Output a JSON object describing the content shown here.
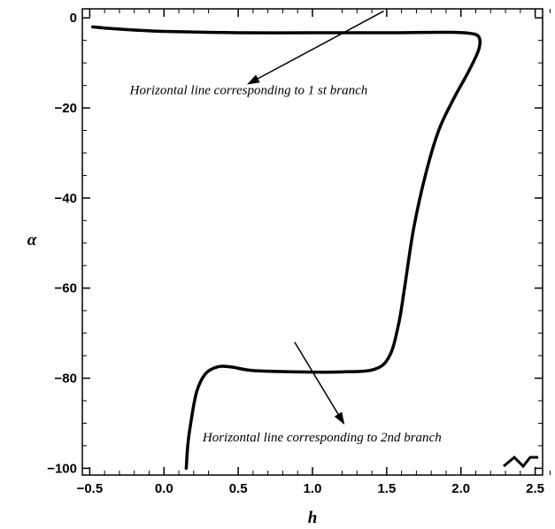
{
  "chart_data": {
    "type": "line",
    "xlabel": "h",
    "ylabel": "α",
    "xlim": [
      -0.55,
      2.55
    ],
    "ylim": [
      -101.5,
      2
    ],
    "x_ticks": [
      -0.5,
      0.0,
      0.5,
      1.0,
      1.5,
      2.0,
      2.5
    ],
    "x_tick_labels": [
      "−0.5",
      "0.0",
      "0.5",
      "1.0",
      "1.5",
      "2.0",
      "2.5"
    ],
    "y_ticks": [
      0,
      -20,
      -40,
      -60,
      -80,
      -100
    ],
    "y_tick_labels": [
      "0",
      "−20",
      "−40",
      "−60",
      "−80",
      "−100"
    ],
    "grid": false,
    "series": [
      {
        "points": [
          [
            -0.48,
            -2.0
          ],
          [
            -0.3,
            -2.5
          ],
          [
            0.0,
            -3.0
          ],
          [
            0.5,
            -3.3
          ],
          [
            1.0,
            -3.3
          ],
          [
            1.5,
            -3.3
          ],
          [
            1.9,
            -3.2
          ],
          [
            2.05,
            -3.4
          ],
          [
            2.12,
            -4.2
          ],
          [
            2.12,
            -7.0
          ],
          [
            2.05,
            -12.0
          ],
          [
            1.95,
            -18.0
          ],
          [
            1.85,
            -25.0
          ],
          [
            1.76,
            -35.0
          ],
          [
            1.68,
            -47.0
          ],
          [
            1.62,
            -60.0
          ],
          [
            1.58,
            -68.0
          ],
          [
            1.52,
            -75.0
          ],
          [
            1.42,
            -78.0
          ],
          [
            1.2,
            -78.6
          ],
          [
            0.9,
            -78.6
          ],
          [
            0.6,
            -78.3
          ],
          [
            0.45,
            -77.5
          ],
          [
            0.36,
            -77.5
          ],
          [
            0.28,
            -79.0
          ],
          [
            0.22,
            -83.0
          ],
          [
            0.18,
            -90.0
          ],
          [
            0.16,
            -95.0
          ],
          [
            0.15,
            -100.0
          ]
        ]
      }
    ],
    "annotations": [
      {
        "text": "Horizontal line corresponding to 1 st branch",
        "anchor": [
          -0.23,
          -17.0
        ],
        "arrow_from": [
          1.48,
          1.5
        ],
        "arrow_to": [
          0.57,
          -14.6
        ]
      },
      {
        "text": "Horizontal line corresponding to 2nd branch",
        "anchor": [
          0.26,
          -94.0
        ],
        "arrow_from": [
          0.88,
          -72.0
        ],
        "arrow_to": [
          1.21,
          -90.0
        ]
      }
    ]
  }
}
